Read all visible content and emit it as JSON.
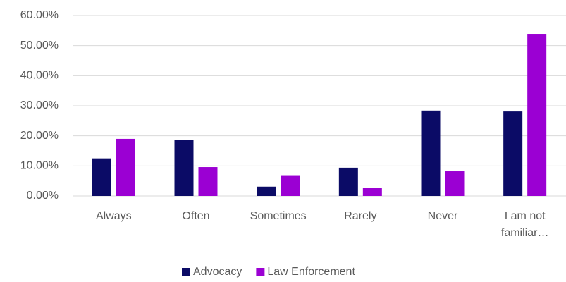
{
  "chart_data": {
    "type": "bar",
    "categories": [
      "Always",
      "Often",
      "Sometimes",
      "Rarely",
      "Never",
      "I am not familiar…"
    ],
    "series": [
      {
        "name": "Advocacy",
        "color": "#0b0b66",
        "values": [
          12.5,
          18.75,
          3.1,
          9.4,
          28.4,
          28.1
        ]
      },
      {
        "name": "Law Enforcement",
        "color": "#9b00d3",
        "values": [
          19,
          9.6,
          6.9,
          2.8,
          8.2,
          53.9
        ]
      }
    ],
    "ylim": [
      0,
      60
    ],
    "yticks": [
      {
        "value": 0,
        "label": "0.00%"
      },
      {
        "value": 10,
        "label": "10.00%"
      },
      {
        "value": 20,
        "label": "20.00%"
      },
      {
        "value": 30,
        "label": "30.00%"
      },
      {
        "value": 40,
        "label": "40.00%"
      },
      {
        "value": 50,
        "label": "50.00%"
      },
      {
        "value": 60,
        "label": "60.00%"
      }
    ],
    "grid": true,
    "legend": "bottom"
  }
}
